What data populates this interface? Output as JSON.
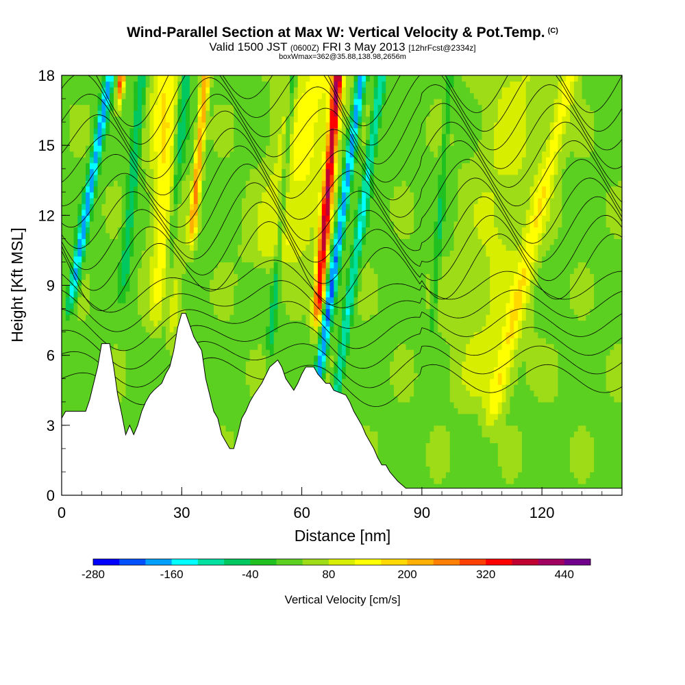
{
  "header": {
    "title": "Wind-Parallel Section at Max W: Vertical Velocity & Pot.Temp.",
    "title_mark": "(C)",
    "valid_prefix": "Valid 1500 JST",
    "valid_utc": "(0600Z)",
    "valid_date": "FRI 3 May 2013",
    "forecast": "[12hrFcst@2334z]",
    "box_info": "boxWmax=362@35.88,138.98,2656m"
  },
  "chart_data": {
    "type": "heatmap",
    "xlabel": "Distance [nm]",
    "ylabel": "Height [Kft MSL]",
    "xlim": [
      0,
      140
    ],
    "ylim": [
      0,
      18
    ],
    "xticks": [
      0,
      30,
      60,
      90,
      120
    ],
    "yticks": [
      0,
      3,
      6,
      9,
      12,
      15,
      18
    ],
    "colorbar": {
      "label": "Vertical Velocity [cm/s]",
      "tick_labels": [
        -280,
        -160,
        -40,
        80,
        200,
        320,
        440
      ],
      "bounds": [
        -280,
        -240,
        -200,
        -160,
        -120,
        -80,
        -40,
        0,
        40,
        80,
        120,
        160,
        200,
        240,
        280,
        320,
        360,
        400,
        440
      ],
      "colors": [
        "#0000ff",
        "#0050ff",
        "#00a0ff",
        "#00ffff",
        "#00e0a0",
        "#00c860",
        "#20c020",
        "#5cd020",
        "#9edc18",
        "#d8ee00",
        "#ffff00",
        "#ffd800",
        "#ffb000",
        "#ff8000",
        "#ff4000",
        "#ff0000",
        "#c00030",
        "#a00060",
        "#70008c"
      ]
    },
    "terrain": [
      [
        0,
        3.3
      ],
      [
        1,
        3.6
      ],
      [
        6,
        3.6
      ],
      [
        7,
        4.1
      ],
      [
        8,
        4.8
      ],
      [
        9,
        5.5
      ],
      [
        10,
        6.5
      ],
      [
        12,
        6.5
      ],
      [
        13,
        5.5
      ],
      [
        14,
        4.3
      ],
      [
        15,
        3.5
      ],
      [
        16,
        2.6
      ],
      [
        17,
        3.0
      ],
      [
        18,
        2.6
      ],
      [
        19,
        3.0
      ],
      [
        20,
        3.6
      ],
      [
        21,
        4.0
      ],
      [
        22,
        4.3
      ],
      [
        23,
        4.5
      ],
      [
        25,
        4.8
      ],
      [
        26,
        5.2
      ],
      [
        27,
        5.5
      ],
      [
        28,
        6.2
      ],
      [
        29,
        7.2
      ],
      [
        30,
        7.8
      ],
      [
        31,
        7.8
      ],
      [
        32,
        7.3
      ],
      [
        33,
        6.8
      ],
      [
        35,
        6.2
      ],
      [
        36,
        5.0
      ],
      [
        37,
        4.3
      ],
      [
        38,
        3.6
      ],
      [
        39,
        3.3
      ],
      [
        40,
        2.6
      ],
      [
        41,
        2.3
      ],
      [
        42,
        2.0
      ],
      [
        43,
        2.0
      ],
      [
        44,
        2.6
      ],
      [
        45,
        3.3
      ],
      [
        46,
        3.6
      ],
      [
        47,
        4.0
      ],
      [
        48,
        4.3
      ],
      [
        50,
        4.8
      ],
      [
        52,
        5.5
      ],
      [
        54,
        5.8
      ],
      [
        55,
        5.5
      ],
      [
        56,
        5.0
      ],
      [
        58,
        4.5
      ],
      [
        59,
        4.8
      ],
      [
        60,
        5.2
      ],
      [
        61,
        5.5
      ],
      [
        62,
        5.5
      ],
      [
        63,
        5.5
      ],
      [
        64,
        5.2
      ],
      [
        65,
        5.0
      ],
      [
        66,
        4.8
      ],
      [
        67,
        4.8
      ],
      [
        68,
        4.5
      ],
      [
        71,
        4.3
      ],
      [
        72,
        4.0
      ],
      [
        73,
        3.6
      ],
      [
        74,
        3.3
      ],
      [
        75,
        3.0
      ],
      [
        76,
        2.6
      ],
      [
        77,
        2.3
      ],
      [
        78,
        2.0
      ],
      [
        79,
        1.6
      ],
      [
        80,
        1.3
      ],
      [
        81,
        1.3
      ],
      [
        82,
        1.0
      ],
      [
        84,
        0.6
      ],
      [
        86,
        0.3
      ],
      [
        140,
        0.3
      ]
    ],
    "updrafts": [
      [
        15,
        -2,
        18,
        0.75,
        330
      ],
      [
        36,
        -1.5,
        12,
        1.0,
        210
      ],
      [
        69,
        -1.5,
        8.5,
        1.3,
        330
      ],
      [
        64,
        -3.5,
        11,
        7.5,
        100
      ],
      [
        26,
        0,
        8,
        3.5,
        130
      ],
      [
        127,
        -4.0,
        4.0,
        2.2,
        100
      ],
      [
        114,
        -2.0,
        5.0,
        9.0,
        55
      ]
    ],
    "downdrafts": [
      [
        12,
        -3,
        9,
        1.2,
        -210
      ],
      [
        20,
        -1.5,
        10,
        1.2,
        -110
      ],
      [
        31,
        -1.5,
        8,
        1.4,
        -120
      ],
      [
        58,
        -1.5,
        7,
        1.0,
        -90
      ],
      [
        75,
        -2.5,
        5.5,
        1.2,
        -230
      ],
      [
        80,
        -2.5,
        4,
        1.2,
        -150
      ],
      [
        97,
        -1.2,
        8,
        0.8,
        -70
      ]
    ],
    "base_w": 30
  }
}
